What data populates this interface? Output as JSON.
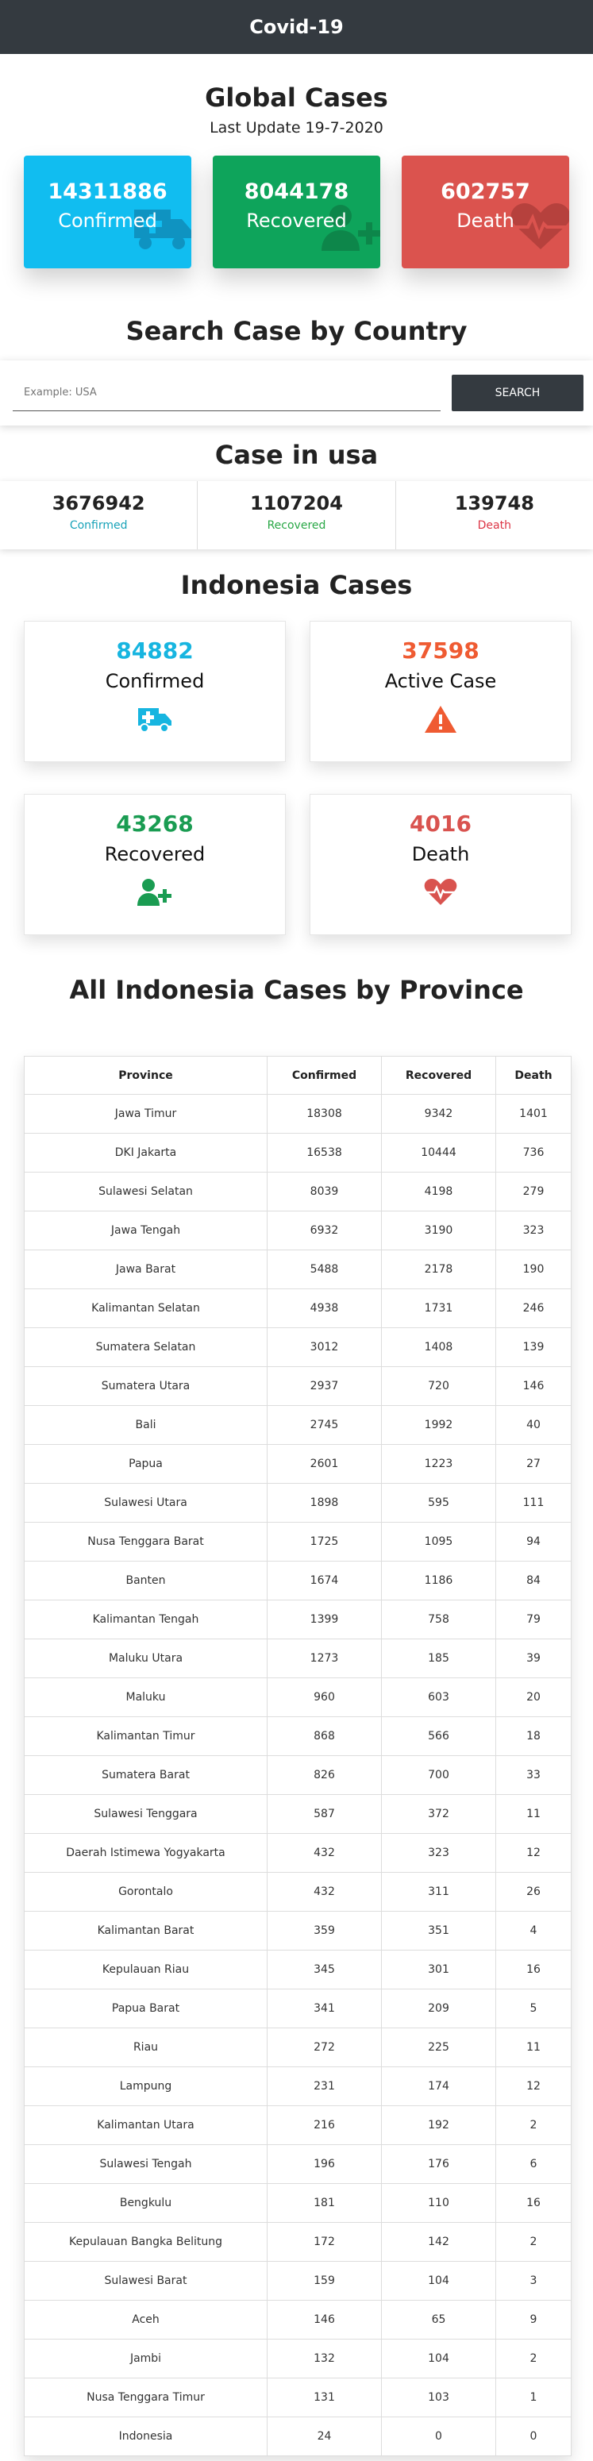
{
  "navbar": {
    "title": "Covid-19"
  },
  "global": {
    "title": "Global Cases",
    "last_update": "Last Update 19-7-2020",
    "confirmed": {
      "value": "14311886",
      "label": "Confirmed",
      "icon": "ambulance-icon",
      "color": "#11bdf0"
    },
    "recovered": {
      "value": "8044178",
      "label": "Recovered",
      "icon": "user-plus-icon",
      "color": "#0ea45b"
    },
    "death": {
      "value": "602757",
      "label": "Death",
      "icon": "heartbeat-icon",
      "color": "#db534e"
    }
  },
  "search": {
    "title": "Search Case by Country",
    "placeholder": "Example: USA",
    "button_label": "SEARCH"
  },
  "usa": {
    "title": "Case in usa",
    "confirmed": {
      "value": "3676942",
      "label": "Confirmed"
    },
    "recovered": {
      "value": "1107204",
      "label": "Recovered"
    },
    "death": {
      "value": "139748",
      "label": "Death"
    }
  },
  "indonesia": {
    "title": "Indonesia Cases",
    "confirmed": {
      "value": "84882",
      "label": "Confirmed",
      "icon": "ambulance-icon",
      "color": "#17b5e0"
    },
    "active": {
      "value": "37598",
      "label": "Active Case",
      "icon": "warning-icon",
      "color": "#ef5b32"
    },
    "recovered": {
      "value": "43268",
      "label": "Recovered",
      "icon": "user-plus-icon",
      "color": "#1a9c52"
    },
    "death": {
      "value": "4016",
      "label": "Death",
      "icon": "heartbeat-icon",
      "color": "#d9534f"
    }
  },
  "provinces": {
    "title": "All Indonesia Cases by Province",
    "headers": [
      "Province",
      "Confirmed",
      "Recovered",
      "Death"
    ],
    "rows": [
      [
        "Jawa Timur",
        "18308",
        "9342",
        "1401"
      ],
      [
        "DKI Jakarta",
        "16538",
        "10444",
        "736"
      ],
      [
        "Sulawesi Selatan",
        "8039",
        "4198",
        "279"
      ],
      [
        "Jawa Tengah",
        "6932",
        "3190",
        "323"
      ],
      [
        "Jawa Barat",
        "5488",
        "2178",
        "190"
      ],
      [
        "Kalimantan Selatan",
        "4938",
        "1731",
        "246"
      ],
      [
        "Sumatera Selatan",
        "3012",
        "1408",
        "139"
      ],
      [
        "Sumatera Utara",
        "2937",
        "720",
        "146"
      ],
      [
        "Bali",
        "2745",
        "1992",
        "40"
      ],
      [
        "Papua",
        "2601",
        "1223",
        "27"
      ],
      [
        "Sulawesi Utara",
        "1898",
        "595",
        "111"
      ],
      [
        "Nusa Tenggara Barat",
        "1725",
        "1095",
        "94"
      ],
      [
        "Banten",
        "1674",
        "1186",
        "84"
      ],
      [
        "Kalimantan Tengah",
        "1399",
        "758",
        "79"
      ],
      [
        "Maluku Utara",
        "1273",
        "185",
        "39"
      ],
      [
        "Maluku",
        "960",
        "603",
        "20"
      ],
      [
        "Kalimantan Timur",
        "868",
        "566",
        "18"
      ],
      [
        "Sumatera Barat",
        "826",
        "700",
        "33"
      ],
      [
        "Sulawesi Tenggara",
        "587",
        "372",
        "11"
      ],
      [
        "Daerah Istimewa Yogyakarta",
        "432",
        "323",
        "12"
      ],
      [
        "Gorontalo",
        "432",
        "311",
        "26"
      ],
      [
        "Kalimantan Barat",
        "359",
        "351",
        "4"
      ],
      [
        "Kepulauan Riau",
        "345",
        "301",
        "16"
      ],
      [
        "Papua Barat",
        "341",
        "209",
        "5"
      ],
      [
        "Riau",
        "272",
        "225",
        "11"
      ],
      [
        "Lampung",
        "231",
        "174",
        "12"
      ],
      [
        "Kalimantan Utara",
        "216",
        "192",
        "2"
      ],
      [
        "Sulawesi Tengah",
        "196",
        "176",
        "6"
      ],
      [
        "Bengkulu",
        "181",
        "110",
        "16"
      ],
      [
        "Kepulauan Bangka Belitung",
        "172",
        "142",
        "2"
      ],
      [
        "Sulawesi Barat",
        "159",
        "104",
        "3"
      ],
      [
        "Aceh",
        "146",
        "65",
        "9"
      ],
      [
        "Jambi",
        "132",
        "104",
        "2"
      ],
      [
        "Nusa Tenggara Timur",
        "131",
        "103",
        "1"
      ],
      [
        "Indonesia",
        "24",
        "0",
        "0"
      ]
    ]
  }
}
